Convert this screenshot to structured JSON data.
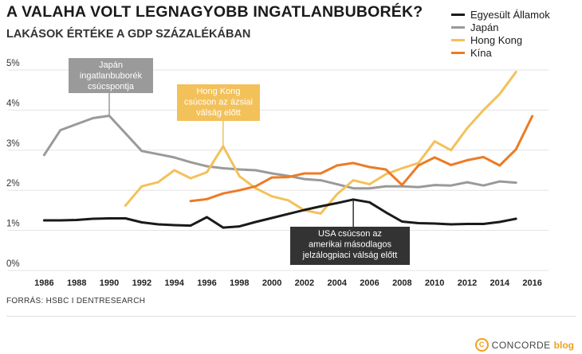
{
  "chart_data": {
    "type": "line",
    "title": "A VALAHA VOLT LEGNAGYOBB INGATLANBUBORÉK?",
    "subtitle": "LAKÁSOK ÉRTÉKE A GDP SZÁZALÉKÁBAN",
    "xlabel": "",
    "ylabel": "",
    "xlim": [
      1985,
      2017
    ],
    "ylim": [
      0,
      5
    ],
    "grid": true,
    "x_ticks": [
      1986,
      1988,
      1990,
      1992,
      1994,
      1996,
      1998,
      2000,
      2002,
      2004,
      2006,
      2008,
      2010,
      2012,
      2014,
      2016
    ],
    "y_ticks": [
      {
        "value": 0,
        "label": "0%"
      },
      {
        "value": 1,
        "label": "1%"
      },
      {
        "value": 2,
        "label": "2%"
      },
      {
        "value": 3,
        "label": "3%"
      },
      {
        "value": 4,
        "label": "4%"
      },
      {
        "value": 5,
        "label": "5%"
      }
    ],
    "series": [
      {
        "name": "Egyesült Államok",
        "color": "#1a1a1a",
        "x": [
          1986,
          1987,
          1988,
          1989,
          1990,
          1991,
          1992,
          1993,
          1994,
          1995,
          1996,
          1997,
          1998,
          1999,
          2000,
          2001,
          2002,
          2003,
          2004,
          2005,
          2006,
          2007,
          2008,
          2009,
          2010,
          2011,
          2012,
          2013,
          2014,
          2015
        ],
        "values": [
          1.25,
          1.25,
          1.26,
          1.29,
          1.3,
          1.3,
          1.2,
          1.15,
          1.13,
          1.12,
          1.33,
          1.07,
          1.1,
          1.21,
          1.31,
          1.41,
          1.51,
          1.6,
          1.68,
          1.77,
          1.7,
          1.45,
          1.22,
          1.18,
          1.17,
          1.15,
          1.16,
          1.16,
          1.21,
          1.29
        ]
      },
      {
        "name": "Japán",
        "color": "#9a9a9a",
        "x": [
          1986,
          1987,
          1988,
          1989,
          1990,
          1991,
          1992,
          1993,
          1994,
          1995,
          1996,
          1997,
          1998,
          1999,
          2000,
          2001,
          2002,
          2003,
          2004,
          2005,
          2006,
          2007,
          2008,
          2009,
          2010,
          2011,
          2012,
          2013,
          2014,
          2015
        ],
        "values": [
          2.88,
          3.5,
          3.65,
          3.8,
          3.86,
          3.42,
          2.98,
          2.9,
          2.82,
          2.7,
          2.6,
          2.55,
          2.52,
          2.5,
          2.42,
          2.36,
          2.28,
          2.25,
          2.15,
          2.05,
          2.05,
          2.1,
          2.1,
          2.08,
          2.13,
          2.12,
          2.2,
          2.12,
          2.22,
          2.19
        ]
      },
      {
        "name": "Hong Kong",
        "color": "#f3c15a",
        "x": [
          1991,
          1992,
          1993,
          1994,
          1995,
          1996,
          1997,
          1998,
          1999,
          2000,
          2001,
          2002,
          2003,
          2004,
          2005,
          2006,
          2007,
          2008,
          2009,
          2010,
          2011,
          2012,
          2013,
          2014,
          2015
        ],
        "values": [
          1.62,
          2.1,
          2.2,
          2.5,
          2.3,
          2.45,
          3.1,
          2.35,
          2.05,
          1.85,
          1.75,
          1.5,
          1.42,
          1.9,
          2.25,
          2.15,
          2.4,
          2.55,
          2.68,
          3.22,
          3.0,
          3.55,
          4.0,
          4.4,
          4.95
        ]
      },
      {
        "name": "Kína",
        "color": "#ec7b25",
        "x": [
          1995,
          1996,
          1997,
          1998,
          1999,
          2000,
          2001,
          2002,
          2003,
          2004,
          2005,
          2006,
          2007,
          2008,
          2009,
          2010,
          2011,
          2012,
          2013,
          2014,
          2015,
          2016
        ],
        "values": [
          1.73,
          1.78,
          1.92,
          2.0,
          2.1,
          2.32,
          2.33,
          2.42,
          2.42,
          2.62,
          2.68,
          2.58,
          2.52,
          2.13,
          2.62,
          2.82,
          2.63,
          2.75,
          2.83,
          2.62,
          3.02,
          3.85
        ]
      }
    ],
    "annotations": [
      {
        "id": "japan",
        "text": "Japán ingatlanbuborék csúcspontja",
        "lines": [
          "Japán",
          "ingatlanbuborék",
          "csúcspontja"
        ],
        "bg": "#9a9a9a",
        "fg": "#ffffff",
        "target_x": 1990,
        "target_y": 3.86
      },
      {
        "id": "hongkong",
        "text": "Hong Kong csúcson az ázsiai válság előtt",
        "lines": [
          "Hong Kong",
          "csúcson az ázsiai",
          "válság előtt"
        ],
        "bg": "#f3c15a",
        "fg": "#ffffff",
        "target_x": 1997,
        "target_y": 3.1
      },
      {
        "id": "usa",
        "text": "USA csúcson az amerikai másodlagos jelzálogpiaci válság előtt",
        "lines": [
          "USA csúcson az",
          "amerikai másodlagos",
          "jelzálogpiaci válság előtt"
        ],
        "bg": "#333333",
        "fg": "#ffffff",
        "target_x": 2005,
        "target_y": 1.77
      }
    ]
  },
  "source_text": "FORRÁS: HSBC I DENTRESEARCH",
  "brand": {
    "mark": "C",
    "name": "CONCORDE",
    "suffix": "blog",
    "accent": "#f0a01e"
  }
}
